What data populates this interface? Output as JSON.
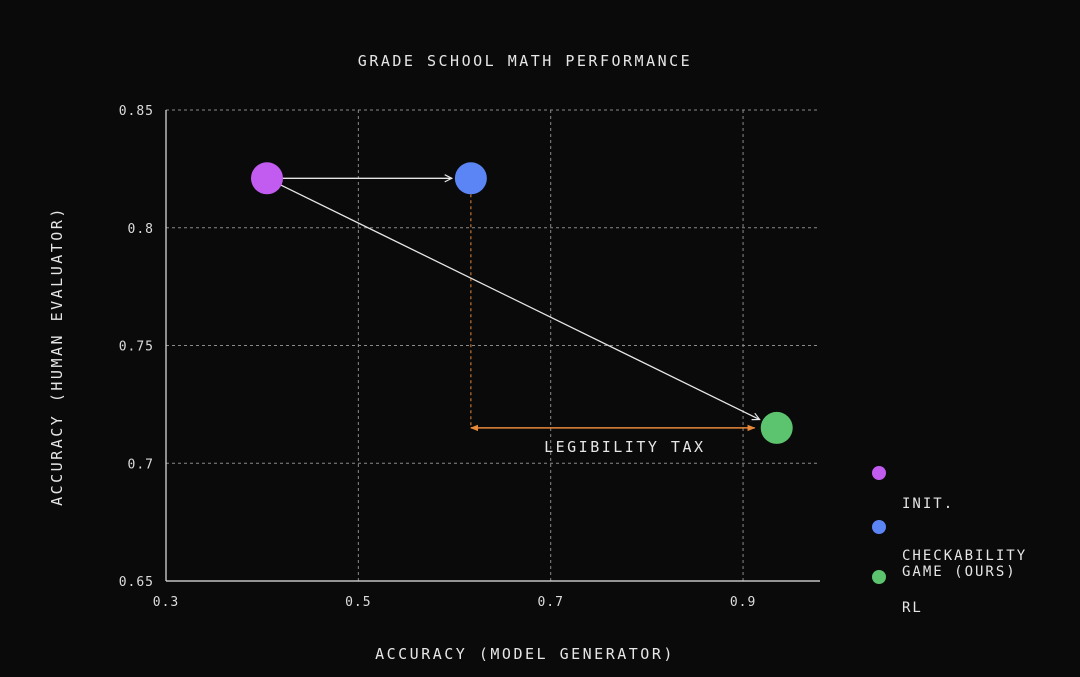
{
  "chart_data": {
    "type": "scatter",
    "title": "GRADE SCHOOL MATH PERFORMANCE",
    "xlabel": "ACCURACY (MODEL GENERATOR)",
    "ylabel": "ACCURACY (HUMAN EVALUATOR)",
    "xlim": [
      0.3,
      0.98
    ],
    "ylim": [
      0.65,
      0.85
    ],
    "xticks": [
      "0.3",
      "0.5",
      "0.7",
      "0.9"
    ],
    "xtick_values": [
      0.3,
      0.5,
      0.7,
      0.9
    ],
    "yticks": [
      "0.85",
      "0.8",
      "0.75",
      "0.7",
      "0.65"
    ],
    "ytick_values": [
      0.85,
      0.8,
      0.75,
      0.7,
      0.65
    ],
    "grid": true,
    "legend_position": "right",
    "series": [
      {
        "name": "INIT.",
        "x": 0.405,
        "y": 0.821,
        "color": "#c25cf0"
      },
      {
        "name": "CHECKABILITY\nGAME (OURS)",
        "x": 0.617,
        "y": 0.821,
        "color": "#5b84f5"
      },
      {
        "name": "RL",
        "x": 0.935,
        "y": 0.715,
        "color": "#5cc46e"
      }
    ],
    "arrows": [
      {
        "from": 0,
        "to": 1,
        "color": "#e6e6e6"
      },
      {
        "from": 0,
        "to": 2,
        "color": "#e6e6e6"
      }
    ],
    "annotation": {
      "text": "LEGIBILITY TAX",
      "color": "#e8893a",
      "x_from": 0.617,
      "x_to": 0.935,
      "y": 0.715
    }
  }
}
